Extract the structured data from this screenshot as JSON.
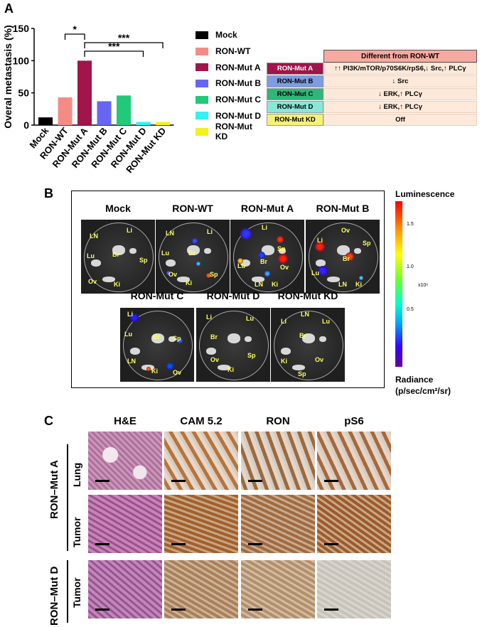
{
  "panels": {
    "a": "A",
    "b": "B",
    "c": "C"
  },
  "chart_data": {
    "type": "bar",
    "ylabel": "Overal metastasis (%)",
    "xlabel": "",
    "ylim": [
      0,
      150
    ],
    "yticks": [
      "0",
      "50",
      "100",
      "150"
    ],
    "categories": [
      "Mock",
      "RON-WT",
      "RON-Mut A",
      "RON-Mut B",
      "RON-Mut C",
      "RON-Mut D",
      "RON-Mut KD"
    ],
    "values": [
      12,
      43,
      100,
      37,
      46,
      5,
      5
    ],
    "colors": [
      "#000000",
      "#f48c84",
      "#a0154a",
      "#6666f2",
      "#22c97a",
      "#33f2f2",
      "#f2f21e"
    ],
    "significance": [
      {
        "from": "RON-WT",
        "to": "RON-Mut A",
        "label": "*"
      },
      {
        "from": "RON-Mut A",
        "to": "RON-Mut D",
        "label": "***"
      },
      {
        "from": "RON-Mut A",
        "to": "RON-Mut KD",
        "label": "***"
      }
    ],
    "legend": [
      "Mock",
      "RON-WT",
      "RON-Mut A",
      "RON-Mut B",
      "RON-Mut C",
      "RON-Mut D",
      "RON-Mut KD"
    ]
  },
  "table": {
    "header": "Different from RON-WT",
    "rows": [
      {
        "label": "RON-Mut A",
        "value": "↑↑ PI3K/mTOR/p70S6K/rpS6,↓ Src,↑ PLCγ",
        "color": "#a0154a",
        "text_color": "#ffffff"
      },
      {
        "label": "RON-Mut B",
        "value": "↓ Src",
        "color": "#7f9ce0",
        "text_color": "#000000"
      },
      {
        "label": "RON-Mut C",
        "value": "↓ ERK,↑ PLCγ",
        "color": "#2db77a",
        "text_color": "#000000"
      },
      {
        "label": "RON-Mut D",
        "value": "↓ ERK,↑ PLCγ",
        "color": "#88e8d8",
        "text_color": "#000000"
      },
      {
        "label": "RON-Mut KD",
        "value": "Off",
        "color": "#f5f07a",
        "text_color": "#000000"
      }
    ]
  },
  "panel_b": {
    "dishes": [
      {
        "title": "Mock",
        "organs": [
          "LN",
          "Li",
          "Lu",
          "Br",
          "Sp",
          "Ov",
          "Ki"
        ]
      },
      {
        "title": "RON-WT",
        "organs": [
          "LN",
          "Li",
          "Lu",
          "Br",
          "Ov",
          "Sp",
          "Ki"
        ]
      },
      {
        "title": "RON-Mut A",
        "organs": [
          "Li",
          "Sp",
          "Lu",
          "Br",
          "Ov",
          "LN",
          "Ki"
        ]
      },
      {
        "title": "RON-Mut B",
        "organs": [
          "Li",
          "Ov",
          "Sp",
          "Br",
          "Lu",
          "LN",
          "Ki"
        ]
      },
      {
        "title": "RON-Mut C",
        "organs": [
          "Li",
          "Lu",
          "Br",
          "Sp",
          "LN",
          "Ki",
          "Ov"
        ]
      },
      {
        "title": "RON-Mut D",
        "organs": [
          "Li",
          "Lu",
          "Br",
          "Sp",
          "Ov",
          "Ki"
        ]
      },
      {
        "title": "RON-Mut KD",
        "organs": [
          "LN",
          "Li",
          "Lu",
          "Br",
          "Ki",
          "Ov",
          "Sp"
        ]
      }
    ],
    "colorbar": {
      "title": "Luminescence",
      "ticks": [
        "1.5",
        "1.0",
        "0.5"
      ],
      "multiplier": "x10⁶",
      "label_line1": "Radiance",
      "label_line2": "(p/sec/cm²/sr)"
    }
  },
  "panel_c": {
    "columns": [
      "H&E",
      "CAM 5.2",
      "RON",
      "pS6"
    ],
    "group_a": "RON–Mut A",
    "group_d": "RON–Mut D",
    "rows": [
      "Lung",
      "Tumor",
      "Tumor"
    ]
  }
}
